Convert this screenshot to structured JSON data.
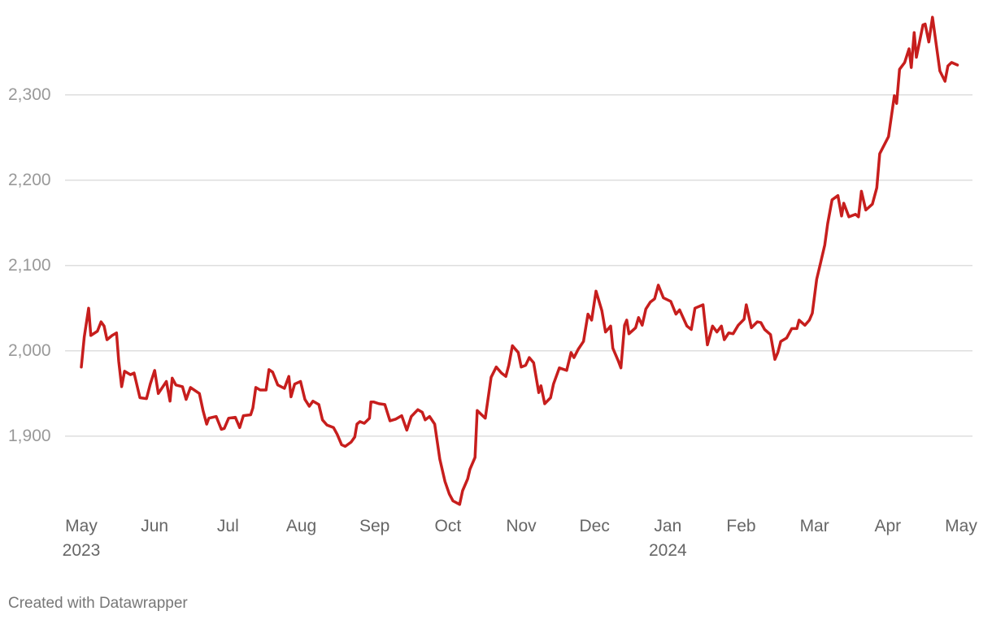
{
  "chart_data": {
    "type": "line",
    "footer": "Created with Datawrapper",
    "x": [
      0,
      0.04,
      0.1,
      0.13,
      0.22,
      0.27,
      0.31,
      0.35,
      0.42,
      0.48,
      0.51,
      0.55,
      0.59,
      0.67,
      0.72,
      0.8,
      0.89,
      0.94,
      1.0,
      1.05,
      1.16,
      1.21,
      1.24,
      1.29,
      1.38,
      1.43,
      1.49,
      1.61,
      1.66,
      1.71,
      1.74,
      1.84,
      1.91,
      1.95,
      2.01,
      2.1,
      2.16,
      2.21,
      2.31,
      2.34,
      2.38,
      2.44,
      2.52,
      2.56,
      2.61,
      2.68,
      2.77,
      2.83,
      2.86,
      2.91,
      2.99,
      3.05,
      3.11,
      3.16,
      3.24,
      3.29,
      3.35,
      3.44,
      3.49,
      3.55,
      3.6,
      3.68,
      3.73,
      3.76,
      3.8,
      3.86,
      3.93,
      3.95,
      3.99,
      4.06,
      4.14,
      4.21,
      4.29,
      4.37,
      4.44,
      4.5,
      4.59,
      4.65,
      4.69,
      4.75,
      4.82,
      4.89,
      4.96,
      5.02,
      5.07,
      5.16,
      5.2,
      5.27,
      5.3,
      5.37,
      5.4,
      5.46,
      5.51,
      5.59,
      5.66,
      5.73,
      5.79,
      5.83,
      5.88,
      5.96,
      6.0,
      6.06,
      6.11,
      6.17,
      6.24,
      6.27,
      6.32,
      6.4,
      6.44,
      6.52,
      6.62,
      6.68,
      6.72,
      6.78,
      6.85,
      6.91,
      6.96,
      7.02,
      7.1,
      7.15,
      7.22,
      7.25,
      7.32,
      7.36,
      7.41,
      7.44,
      7.47,
      7.56,
      7.6,
      7.65,
      7.7,
      7.76,
      7.82,
      7.87,
      7.94,
      8.04,
      8.11,
      8.16,
      8.26,
      8.32,
      8.37,
      8.48,
      8.54,
      8.61,
      8.67,
      8.73,
      8.77,
      8.83,
      8.89,
      8.96,
      9.04,
      9.07,
      9.14,
      9.22,
      9.27,
      9.32,
      9.4,
      9.46,
      9.5,
      9.54,
      9.62,
      9.69,
      9.76,
      9.79,
      9.87,
      9.93,
      9.97,
      10.03,
      10.08,
      10.14,
      10.18,
      10.24,
      10.32,
      10.37,
      10.4,
      10.47,
      10.56,
      10.6,
      10.64,
      10.7,
      10.79,
      10.85,
      10.89,
      11.01,
      11.09,
      11.12,
      11.16,
      11.23,
      11.29,
      11.32,
      11.36,
      11.39,
      11.48,
      11.51,
      11.56,
      11.61,
      11.71,
      11.78,
      11.82,
      11.87,
      11.95
    ],
    "series": [
      {
        "color": "#c71e1d",
        "values": [
          1981,
          2016,
          2050,
          2018,
          2023,
          2034,
          2029,
          2013,
          2018,
          2021,
          1988,
          1958,
          1976,
          1972,
          1974,
          1945,
          1944,
          1961,
          1977,
          1950,
          1964,
          1941,
          1968,
          1960,
          1958,
          1943,
          1957,
          1950,
          1930,
          1914,
          1921,
          1923,
          1908,
          1909,
          1921,
          1922,
          1910,
          1924,
          1925,
          1933,
          1957,
          1954,
          1954,
          1978,
          1975,
          1960,
          1956,
          1970,
          1946,
          1961,
          1964,
          1943,
          1935,
          1941,
          1937,
          1919,
          1913,
          1910,
          1902,
          1890,
          1888,
          1893,
          1899,
          1914,
          1917,
          1915,
          1921,
          1940,
          1940,
          1938,
          1937,
          1918,
          1920,
          1924,
          1907,
          1923,
          1931,
          1928,
          1919,
          1923,
          1914,
          1873,
          1847,
          1832,
          1824,
          1820,
          1836,
          1850,
          1861,
          1875,
          1930,
          1925,
          1921,
          1969,
          1981,
          1974,
          1970,
          1983,
          2006,
          1998,
          1981,
          1983,
          1992,
          1986,
          1951,
          1959,
          1938,
          1945,
          1961,
          1980,
          1977,
          1998,
          1992,
          2002,
          2011,
          2043,
          2036,
          2070,
          2047,
          2022,
          2029,
          2003,
          1989,
          1980,
          2030,
          2036,
          2020,
          2027,
          2039,
          2030,
          2049,
          2057,
          2061,
          2077,
          2062,
          2058,
          2043,
          2048,
          2029,
          2025,
          2050,
          2054,
          2007,
          2029,
          2022,
          2029,
          2013,
          2021,
          2020,
          2030,
          2037,
          2054,
          2027,
          2034,
          2033,
          2025,
          2019,
          1990,
          1998,
          2011,
          2015,
          2026,
          2026,
          2036,
          2030,
          2036,
          2044,
          2084,
          2102,
          2124,
          2149,
          2177,
          2182,
          2158,
          2173,
          2157,
          2160,
          2157,
          2187,
          2165,
          2172,
          2191,
          2231,
          2251,
          2299,
          2290,
          2330,
          2338,
          2354,
          2332,
          2373,
          2344,
          2382,
          2383,
          2362,
          2391,
          2328,
          2316,
          2334,
          2338,
          2335
        ]
      }
    ],
    "xlim": [
      0,
      12
    ],
    "xticks": [
      {
        "value": 0,
        "label": "May 2023"
      },
      {
        "value": 1,
        "label": "Jun"
      },
      {
        "value": 2,
        "label": "Jul"
      },
      {
        "value": 3,
        "label": "Aug"
      },
      {
        "value": 4,
        "label": "Sep"
      },
      {
        "value": 5,
        "label": "Oct"
      },
      {
        "value": 6,
        "label": "Nov"
      },
      {
        "value": 7,
        "label": "Dec"
      },
      {
        "value": 8,
        "label": "Jan 2024"
      },
      {
        "value": 9,
        "label": "Feb"
      },
      {
        "value": 10,
        "label": "Mar"
      },
      {
        "value": 11,
        "label": "Apr"
      },
      {
        "value": 12,
        "label": "May"
      }
    ],
    "ylim": [
      1815,
      2395
    ],
    "yticks": [
      {
        "value": 1900,
        "label": "1,900"
      },
      {
        "value": 2000,
        "label": "2,000"
      },
      {
        "value": 2100,
        "label": "2,100"
      },
      {
        "value": 2200,
        "label": "2,200"
      },
      {
        "value": 2300,
        "label": "2,300"
      }
    ],
    "grid": true
  }
}
